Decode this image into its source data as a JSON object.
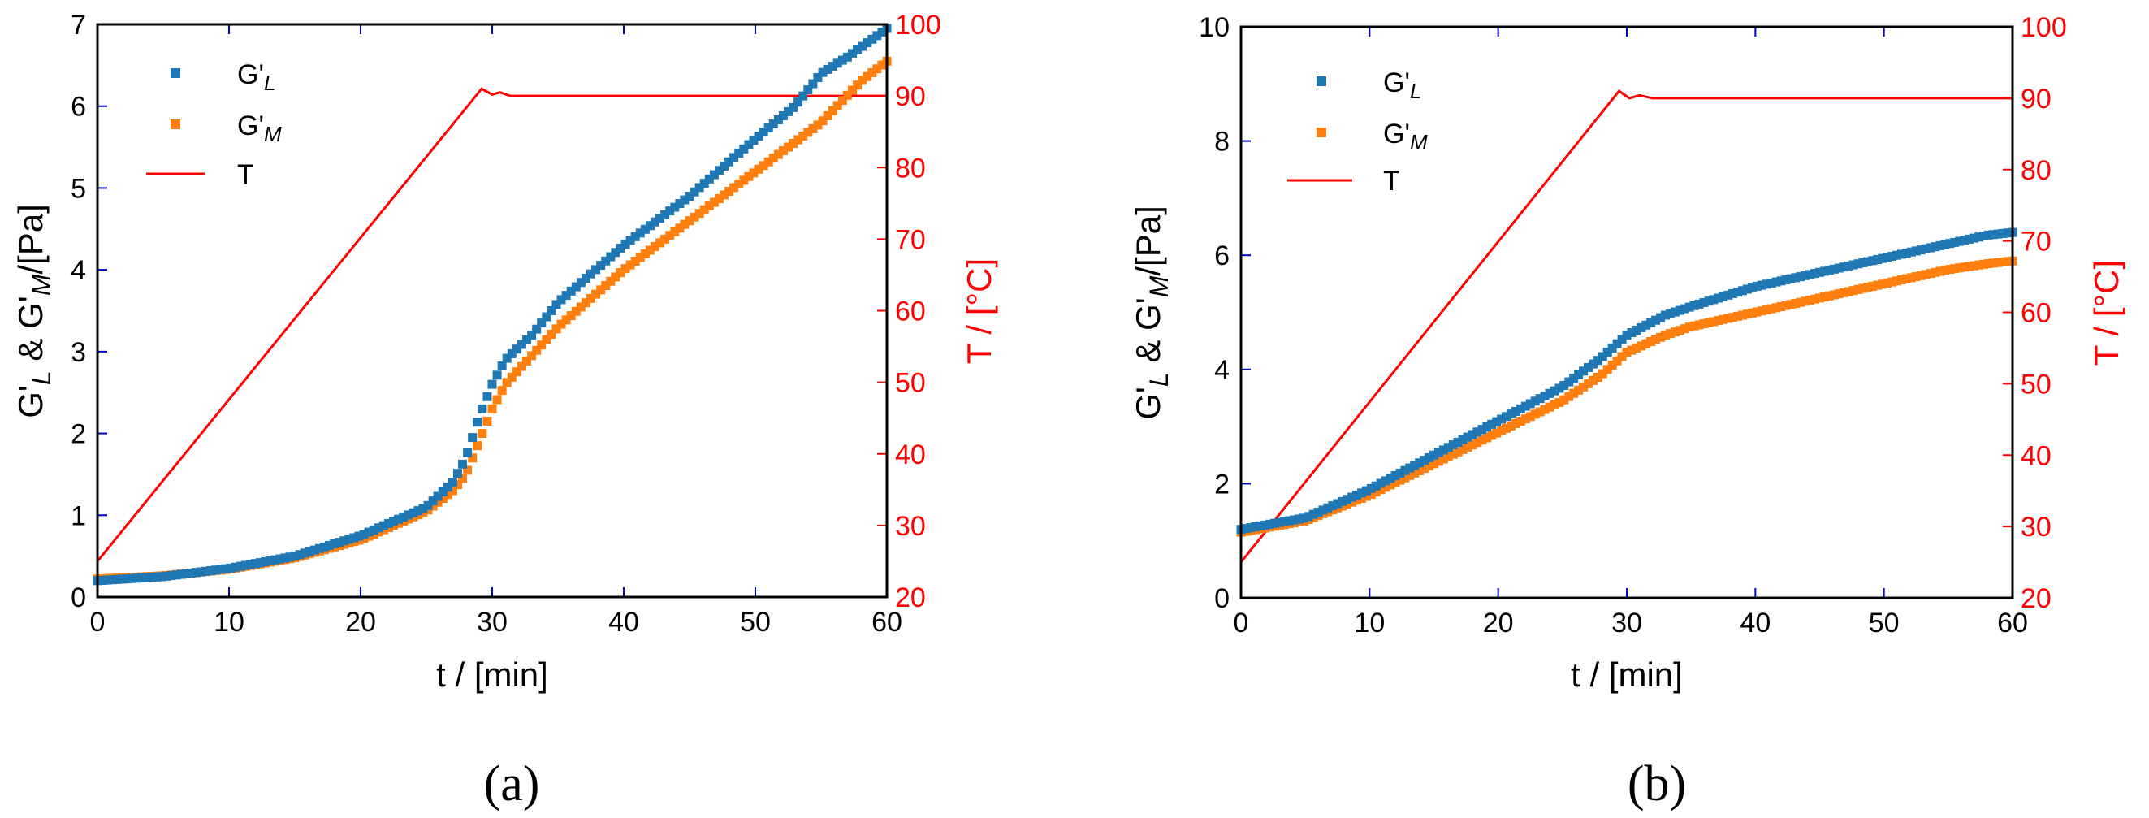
{
  "colors": {
    "gl": "#1f77b4",
    "gm": "#ff7f0e",
    "t": "#ff0000",
    "tick": "#0000cc"
  },
  "legend": {
    "gl": {
      "base": "G'",
      "sub": "L"
    },
    "gm": {
      "base": "G'",
      "sub": "M"
    },
    "t": "T"
  },
  "chart_data": [
    {
      "panel": "a",
      "panel_label": "(a)",
      "type": "scatter+line",
      "xlabel": "t / [min]",
      "ylabel_left": {
        "p1": "G'",
        "s1": "L",
        "p2": " & G'",
        "s2": "M",
        "p3": "/[Pa]"
      },
      "ylabel_right": "T / [°C]",
      "xlim": [
        0,
        60
      ],
      "ylim_left": [
        0,
        7
      ],
      "ylim_right": [
        20,
        100
      ],
      "xticks": [
        "0",
        "10",
        "20",
        "30",
        "40",
        "50",
        "60"
      ],
      "yticks_left": [
        "0",
        "1",
        "2",
        "3",
        "4",
        "5",
        "6",
        "7"
      ],
      "yticks_right": [
        "20",
        "30",
        "40",
        "50",
        "60",
        "70",
        "80",
        "90",
        "100"
      ],
      "series": [
        {
          "name": "G'L",
          "kind": "markers",
          "x": [
            0,
            5,
            10,
            15,
            20,
            25,
            27,
            28,
            29,
            30,
            31,
            33,
            35,
            40,
            45,
            50,
            53,
            55,
            57,
            60
          ],
          "y": [
            0.2,
            0.25,
            0.35,
            0.5,
            0.75,
            1.1,
            1.4,
            1.7,
            2.2,
            2.6,
            2.9,
            3.2,
            3.6,
            4.3,
            4.9,
            5.6,
            6.0,
            6.4,
            6.6,
            6.95
          ]
        },
        {
          "name": "G'M",
          "kind": "markers",
          "x": [
            0,
            5,
            10,
            15,
            20,
            25,
            27,
            28,
            29,
            30,
            31,
            33,
            35,
            40,
            45,
            50,
            55,
            58,
            60
          ],
          "y": [
            0.22,
            0.26,
            0.34,
            0.48,
            0.7,
            1.05,
            1.3,
            1.5,
            1.9,
            2.3,
            2.6,
            2.95,
            3.3,
            4.0,
            4.6,
            5.2,
            5.8,
            6.3,
            6.55
          ]
        },
        {
          "name": "T",
          "kind": "line",
          "axis": "right",
          "x": [
            0,
            29.2,
            30,
            30.6,
            31.4,
            32.5,
            60
          ],
          "y": [
            25,
            91,
            90.2,
            90.5,
            90,
            90,
            90
          ]
        }
      ]
    },
    {
      "panel": "b",
      "panel_label": "(b)",
      "type": "scatter+line",
      "xlabel": "t / [min]",
      "ylabel_left": {
        "p1": "G'",
        "s1": "L",
        "p2": " & G'",
        "s2": "M",
        "p3": "/[Pa]"
      },
      "ylabel_right": "T / [°C]",
      "xlim": [
        0,
        60
      ],
      "ylim_left": [
        0,
        10
      ],
      "ylim_right": [
        20,
        100
      ],
      "xticks": [
        "0",
        "10",
        "20",
        "30",
        "40",
        "50",
        "60"
      ],
      "yticks_left": [
        "0",
        "2",
        "4",
        "6",
        "8",
        "10"
      ],
      "yticks_right": [
        "20",
        "30",
        "40",
        "50",
        "60",
        "70",
        "80",
        "90",
        "100"
      ],
      "series": [
        {
          "name": "G'L",
          "kind": "markers",
          "x": [
            0,
            5,
            10,
            15,
            20,
            25,
            28,
            30,
            33,
            35,
            40,
            45,
            50,
            55,
            58,
            60
          ],
          "y": [
            1.2,
            1.4,
            1.9,
            2.5,
            3.1,
            3.7,
            4.2,
            4.6,
            4.95,
            5.1,
            5.45,
            5.7,
            5.95,
            6.2,
            6.35,
            6.4
          ]
        },
        {
          "name": "G'M",
          "kind": "markers",
          "x": [
            0,
            5,
            10,
            15,
            20,
            25,
            28,
            30,
            33,
            35,
            40,
            45,
            50,
            55,
            58,
            60
          ],
          "y": [
            1.15,
            1.35,
            1.8,
            2.35,
            2.9,
            3.45,
            3.9,
            4.3,
            4.6,
            4.75,
            5.0,
            5.25,
            5.5,
            5.75,
            5.85,
            5.9
          ]
        },
        {
          "name": "T",
          "kind": "line",
          "axis": "right",
          "x": [
            0,
            29.4,
            30.2,
            31,
            32,
            60
          ],
          "y": [
            25,
            91,
            90,
            90.4,
            90,
            90
          ]
        }
      ]
    }
  ]
}
